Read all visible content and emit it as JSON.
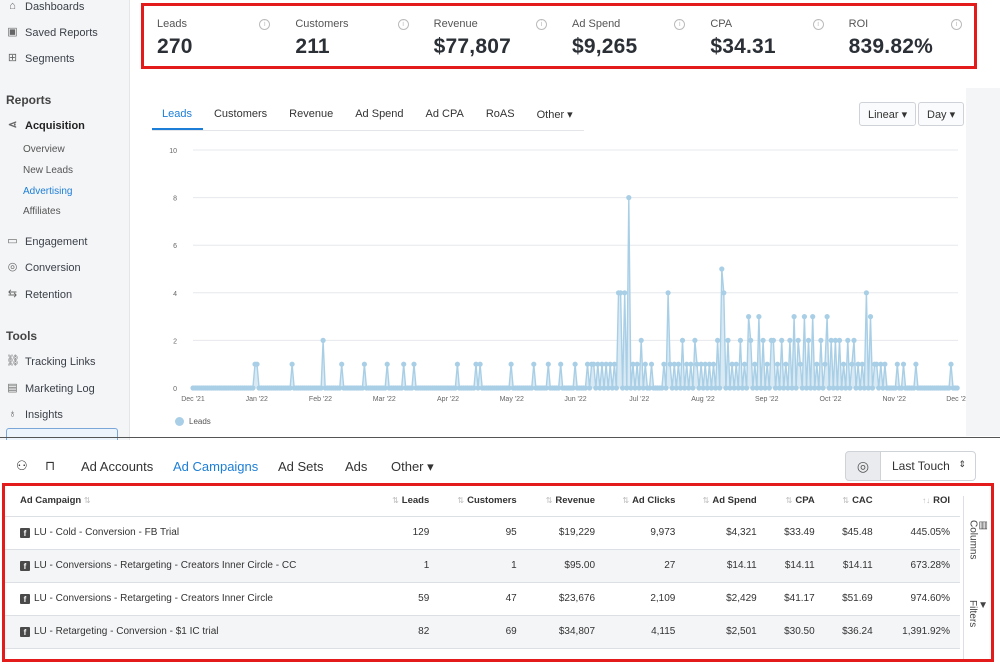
{
  "sidebar": {
    "top_items": [
      {
        "label": "Dashboards",
        "icon": "home-icon"
      },
      {
        "label": "Saved Reports",
        "icon": "bookmark-icon"
      },
      {
        "label": "Segments",
        "icon": "segments-icon"
      }
    ],
    "reports_heading": "Reports",
    "acquisition": {
      "label": "Acquisition",
      "icon": "share-icon"
    },
    "acquisition_sub": [
      {
        "label": "Overview",
        "active": false
      },
      {
        "label": "New Leads",
        "active": false
      },
      {
        "label": "Advertising",
        "active": true
      },
      {
        "label": "Affiliates",
        "active": false
      }
    ],
    "report_items": [
      {
        "label": "Engagement",
        "icon": "chat-icon"
      },
      {
        "label": "Conversion",
        "icon": "conversion-icon"
      },
      {
        "label": "Retention",
        "icon": "retention-icon"
      }
    ],
    "tools_heading": "Tools",
    "tool_items": [
      {
        "label": "Tracking Links",
        "icon": "link-icon"
      },
      {
        "label": "Marketing Log",
        "icon": "log-icon"
      },
      {
        "label": "Insights",
        "icon": "lightbulb-icon"
      }
    ]
  },
  "stats": [
    {
      "label": "Leads",
      "value": "270"
    },
    {
      "label": "Customers",
      "value": "211"
    },
    {
      "label": "Revenue",
      "value": "$77,807"
    },
    {
      "label": "Ad Spend",
      "value": "$9,265"
    },
    {
      "label": "CPA",
      "value": "$34.31"
    },
    {
      "label": "ROI",
      "value": "839.82%"
    }
  ],
  "chart_tabs": [
    {
      "label": "Leads",
      "active": true
    },
    {
      "label": "Customers",
      "active": false
    },
    {
      "label": "Revenue",
      "active": false
    },
    {
      "label": "Ad Spend",
      "active": false
    },
    {
      "label": "Ad CPA",
      "active": false
    },
    {
      "label": "RoAS",
      "active": false
    },
    {
      "label": "Other ▾",
      "active": false
    }
  ],
  "chart_controls": {
    "scale": "Linear ▾",
    "interval": "Day ▾"
  },
  "chart_data": {
    "type": "area",
    "series": [
      {
        "name": "Leads",
        "color": "#a9cfe6"
      }
    ],
    "ylim": [
      0,
      10
    ],
    "yticks": [
      "0",
      "2",
      "4",
      "6",
      "8",
      "10"
    ],
    "xticks": [
      "Dec '21",
      "Jan '22",
      "Feb '22",
      "Mar '22",
      "Apr '22",
      "May '22",
      "Jun '22",
      "Jul '22",
      "Aug '22",
      "Sep '22",
      "Oct '22",
      "Nov '22",
      "Dec '22"
    ],
    "points": [
      [
        0.08,
        1
      ],
      [
        0.085,
        1
      ],
      [
        0.13,
        1
      ],
      [
        0.17,
        2
      ],
      [
        0.195,
        1
      ],
      [
        0.225,
        1
      ],
      [
        0.255,
        1
      ],
      [
        0.275,
        1
      ],
      [
        0.29,
        1
      ],
      [
        0.345,
        1
      ],
      [
        0.37,
        1
      ],
      [
        0.375,
        1
      ],
      [
        0.415,
        1
      ],
      [
        0.445,
        1
      ],
      [
        0.465,
        1
      ],
      [
        0.48,
        1
      ],
      [
        0.5,
        1
      ],
      [
        0.515,
        1
      ],
      [
        0.52,
        1
      ],
      [
        0.525,
        1
      ],
      [
        0.53,
        1
      ],
      [
        0.535,
        1
      ],
      [
        0.54,
        1
      ],
      [
        0.545,
        1
      ],
      [
        0.55,
        1
      ],
      [
        0.555,
        4
      ],
      [
        0.56,
        4
      ],
      [
        0.565,
        4
      ],
      [
        0.57,
        8
      ],
      [
        0.575,
        1
      ],
      [
        0.58,
        1
      ],
      [
        0.585,
        2
      ],
      [
        0.59,
        1
      ],
      [
        0.6,
        1
      ],
      [
        0.615,
        1
      ],
      [
        0.62,
        4
      ],
      [
        0.625,
        1
      ],
      [
        0.63,
        1
      ],
      [
        0.635,
        1
      ],
      [
        0.64,
        2
      ],
      [
        0.645,
        1
      ],
      [
        0.65,
        1
      ],
      [
        0.655,
        2
      ],
      [
        0.66,
        1
      ],
      [
        0.665,
        1
      ],
      [
        0.67,
        1
      ],
      [
        0.675,
        1
      ],
      [
        0.68,
        1
      ],
      [
        0.685,
        2
      ],
      [
        0.69,
        5
      ],
      [
        0.695,
        4
      ],
      [
        0.7,
        2
      ],
      [
        0.705,
        1
      ],
      [
        0.71,
        1
      ],
      [
        0.715,
        2
      ],
      [
        0.72,
        1
      ],
      [
        0.725,
        3
      ],
      [
        0.73,
        2
      ],
      [
        0.735,
        1
      ],
      [
        0.74,
        3
      ],
      [
        0.745,
        2
      ],
      [
        0.75,
        1
      ],
      [
        0.755,
        2
      ],
      [
        0.76,
        2
      ],
      [
        0.765,
        1
      ],
      [
        0.77,
        2
      ],
      [
        0.775,
        1
      ],
      [
        0.78,
        2
      ],
      [
        0.785,
        3
      ],
      [
        0.79,
        2
      ],
      [
        0.795,
        1
      ],
      [
        0.8,
        3
      ],
      [
        0.805,
        2
      ],
      [
        0.81,
        3
      ],
      [
        0.815,
        1
      ],
      [
        0.82,
        2
      ],
      [
        0.825,
        1
      ],
      [
        0.83,
        3
      ],
      [
        0.835,
        2
      ],
      [
        0.84,
        2
      ],
      [
        0.845,
        2
      ],
      [
        0.85,
        1
      ],
      [
        0.855,
        2
      ],
      [
        0.86,
        1
      ],
      [
        0.865,
        2
      ],
      [
        0.87,
        1
      ],
      [
        0.875,
        1
      ],
      [
        0.88,
        4
      ],
      [
        0.885,
        3
      ],
      [
        0.89,
        1
      ],
      [
        0.895,
        1
      ],
      [
        0.9,
        1
      ],
      [
        0.905,
        1
      ],
      [
        0.92,
        1
      ],
      [
        0.93,
        1
      ],
      [
        0.945,
        1
      ],
      [
        0.99,
        1
      ]
    ]
  },
  "toolbar": {
    "tabs": [
      {
        "label": "Ad Accounts",
        "active": false
      },
      {
        "label": "Ad Campaigns",
        "active": true
      },
      {
        "label": "Ad Sets",
        "active": false
      },
      {
        "label": "Ads",
        "active": false
      },
      {
        "label": "Other ▾",
        "active": false
      }
    ],
    "attribution": "Last Touch"
  },
  "table": {
    "columns": [
      "Ad Campaign",
      "Leads",
      "Customers",
      "Revenue",
      "Ad Clicks",
      "Ad Spend",
      "CPA",
      "CAC",
      "ROI"
    ],
    "rows": [
      [
        "LU - Cold - Conversion - FB Trial",
        "129",
        "95",
        "$19,229",
        "9,973",
        "$4,321",
        "$33.49",
        "$45.48",
        "445.05%"
      ],
      [
        "LU - Conversions - Retargeting - Creators Inner Circle - CC",
        "1",
        "1",
        "$95.00",
        "27",
        "$14.11",
        "$14.11",
        "$14.11",
        "673.28%"
      ],
      [
        "LU - Conversions - Retargeting - Creators Inner Circle",
        "59",
        "47",
        "$23,676",
        "2,109",
        "$2,429",
        "$41.17",
        "$51.69",
        "974.60%"
      ],
      [
        "LU - Retargeting - Conversion - $1 IC trial",
        "82",
        "69",
        "$34,807",
        "4,115",
        "$2,501",
        "$30.50",
        "$36.24",
        "1,391.92%"
      ]
    ]
  },
  "rail": {
    "columns": "Columns",
    "filters": "Filters"
  },
  "legend_label": "Leads"
}
